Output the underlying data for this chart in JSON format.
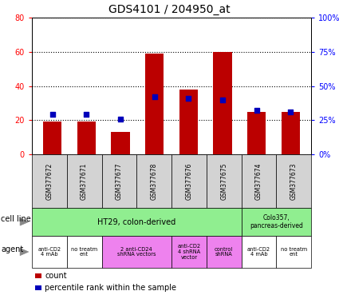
{
  "title": "GDS4101 / 204950_at",
  "samples": [
    "GSM377672",
    "GSM377671",
    "GSM377677",
    "GSM377678",
    "GSM377676",
    "GSM377675",
    "GSM377674",
    "GSM377673"
  ],
  "counts": [
    19,
    19,
    13,
    59,
    38,
    60,
    25,
    25
  ],
  "percentile_ranks": [
    29,
    29,
    26,
    42,
    41,
    40,
    32,
    31
  ],
  "ylim_left": [
    0,
    80
  ],
  "ylim_right": [
    0,
    100
  ],
  "yticks_left": [
    0,
    20,
    40,
    60,
    80
  ],
  "yticks_right": [
    0,
    25,
    50,
    75,
    100
  ],
  "ytick_labels_right": [
    "0%",
    "25%",
    "50%",
    "75%",
    "100%"
  ],
  "bar_color": "#bb0000",
  "dot_color": "#0000bb",
  "ht29_color": "#90ee90",
  "colo357_color": "#90ee90",
  "violet_color": "#ee82ee",
  "white_color": "#ffffff",
  "sample_bg": "#d3d3d3",
  "bg_color": "#ffffff",
  "ht29_label": "HT29, colon-derived",
  "colo357_label": "Colo357,\npancreas-derived",
  "agent_defs": [
    {
      "label": "anti-CD2\n4 mAb",
      "cols": [
        0,
        0
      ],
      "color": "#ffffff"
    },
    {
      "label": "no treatm\nent",
      "cols": [
        1,
        1
      ],
      "color": "#ffffff"
    },
    {
      "label": "2 anti-CD24\nshRNA vectors",
      "cols": [
        2,
        3
      ],
      "color": "#ee82ee"
    },
    {
      "label": "anti-CD2\n4 shRNA\nvector",
      "cols": [
        4,
        4
      ],
      "color": "#ee82ee"
    },
    {
      "label": "control\nshRNA",
      "cols": [
        5,
        5
      ],
      "color": "#ee82ee"
    },
    {
      "label": "anti-CD2\n4 mAb",
      "cols": [
        6,
        6
      ],
      "color": "#ffffff"
    },
    {
      "label": "no treatm\nent",
      "cols": [
        7,
        7
      ],
      "color": "#ffffff"
    }
  ]
}
